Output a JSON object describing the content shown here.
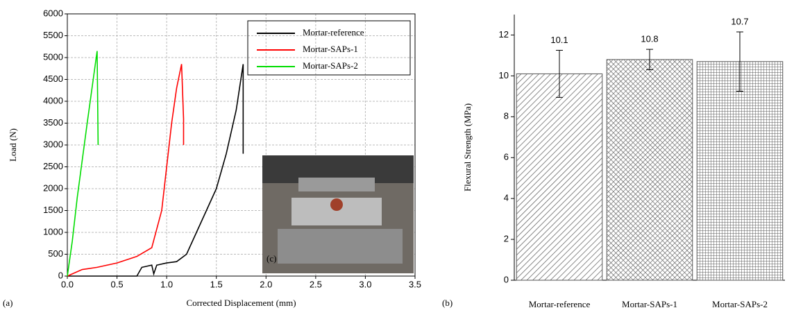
{
  "chart_data": [
    {
      "type": "line",
      "panel_label": "(a)",
      "inset_label": "(c)",
      "x_label": "Corrected Displacement (mm)",
      "y_label": "Load (N)",
      "xlim": [
        0,
        3.5
      ],
      "xticks": [
        {
          "value": 0,
          "label": "0.0"
        },
        0.5,
        {
          "value": 1,
          "label": "1.0"
        },
        1.5,
        {
          "value": 2,
          "label": "2.0"
        },
        2.5,
        {
          "value": 3,
          "label": "3.0"
        },
        3.5
      ],
      "ylim": [
        0,
        6000
      ],
      "yticks": [
        0,
        500,
        1000,
        1500,
        2000,
        2500,
        3000,
        3500,
        4000,
        4500,
        5000,
        5500,
        6000
      ],
      "grid": true,
      "legend": "upper right",
      "series": [
        {
          "name": "Mortar-reference",
          "color": "#000000",
          "x": [
            0,
            0.7,
            0.75,
            0.85,
            0.87,
            0.9,
            1.0,
            1.1,
            1.2,
            1.3,
            1.4,
            1.5,
            1.6,
            1.7,
            1.77,
            1.77
          ],
          "values": [
            0,
            0,
            200,
            250,
            50,
            250,
            300,
            330,
            500,
            1000,
            1500,
            2000,
            2800,
            3800,
            4850,
            2800
          ]
        },
        {
          "name": "Mortar-SAPs-1",
          "color": "#ff0000",
          "x": [
            0,
            0.15,
            0.3,
            0.5,
            0.7,
            0.85,
            0.95,
            1.0,
            1.05,
            1.1,
            1.15,
            1.17,
            1.17
          ],
          "values": [
            0,
            150,
            200,
            300,
            450,
            650,
            1500,
            2500,
            3500,
            4300,
            4850,
            3600,
            3000
          ]
        },
        {
          "name": "Mortar-SAPs-2",
          "color": "#00dd00",
          "x": [
            0,
            0.05,
            0.1,
            0.2,
            0.3,
            0.31
          ],
          "values": [
            0,
            800,
            1800,
            3500,
            5150,
            3000
          ]
        }
      ]
    },
    {
      "type": "bar",
      "panel_label": "(b)",
      "y_label": "Flexural Strength (MPa)",
      "categories": [
        "Mortar-reference",
        "Mortar-SAPs-1",
        "Mortar-SAPs-2"
      ],
      "values": [
        10.1,
        10.8,
        10.7
      ],
      "errors": [
        1.15,
        0.5,
        1.45
      ],
      "color": "#555555",
      "ylim": [
        0,
        13
      ],
      "yticks": [
        0,
        2,
        4,
        6,
        8,
        10,
        12
      ]
    }
  ]
}
